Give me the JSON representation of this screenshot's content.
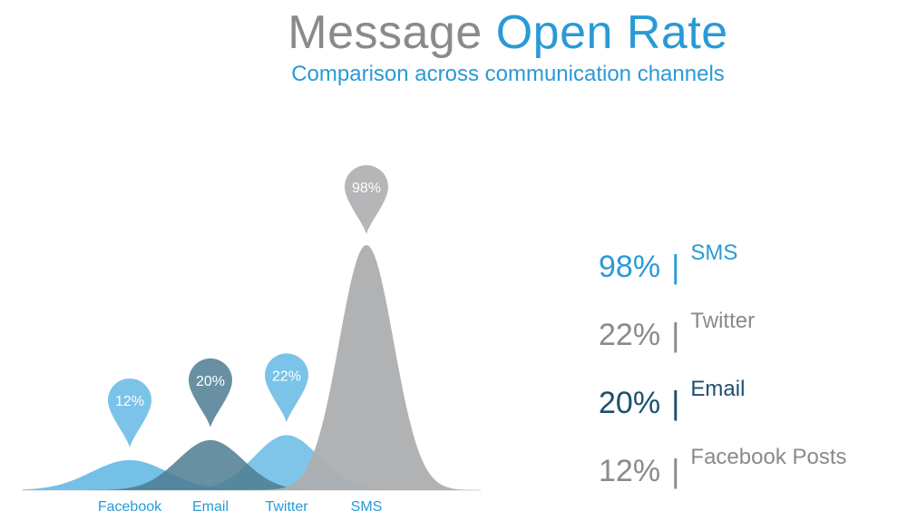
{
  "title_part1": "Message",
  "title_part2": "Open Rate",
  "subtitle": "Comparison across communication channels",
  "colors": {
    "facebook": "#6dbde6",
    "email": "#4e7c92",
    "twitter": "#6dbde6",
    "sms": "#acaeb0",
    "accent_blue": "#2a9ad6",
    "gray_text": "#8a8a8a",
    "dark_blue": "#1c4f6e"
  },
  "stats": [
    {
      "pct": "98%",
      "label": "SMS",
      "color": "#2a9ad6"
    },
    {
      "pct": "22%",
      "label": "Twitter",
      "color": "#8a8a8a"
    },
    {
      "pct": "20%",
      "label": "Email",
      "color": "#1c4f6e"
    },
    {
      "pct": "12%",
      "label": "Facebook Posts",
      "color": "#8a8a8a"
    }
  ],
  "chart_data": {
    "type": "area",
    "categories": [
      "Facebook",
      "Email",
      "Twitter",
      "SMS"
    ],
    "values": [
      12,
      20,
      22,
      98
    ],
    "data_labels": [
      "12%",
      "20%",
      "22%",
      "98%"
    ],
    "unit": "%"
  }
}
